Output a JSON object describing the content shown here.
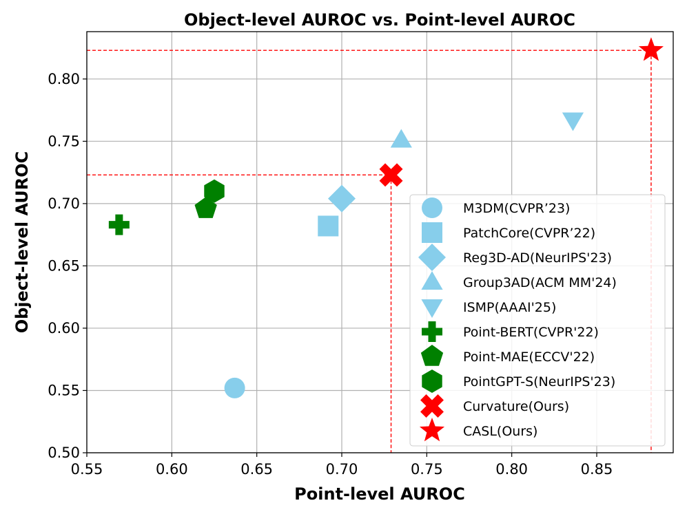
{
  "chart_data": {
    "type": "scatter",
    "title": "Object-level AUROC vs. Point-level AUROC",
    "xlabel": "Point-level AUROC",
    "ylabel": "Object-level AUROC",
    "xlim": [
      0.55,
      0.895
    ],
    "ylim": [
      0.5,
      0.838
    ],
    "xticks": [
      "0.55",
      "0.60",
      "0.65",
      "0.70",
      "0.75",
      "0.80",
      "0.85"
    ],
    "yticks": [
      "0.50",
      "0.55",
      "0.60",
      "0.65",
      "0.70",
      "0.75",
      "0.80"
    ],
    "xtick_values": [
      0.55,
      0.6,
      0.65,
      0.7,
      0.75,
      0.8,
      0.85
    ],
    "ytick_values": [
      0.5,
      0.55,
      0.6,
      0.65,
      0.7,
      0.75,
      0.8
    ],
    "grid": true,
    "legend_position": "lower-right",
    "series": [
      {
        "name": "M3DM(CVPR’23)",
        "marker": "circle",
        "color": "#87CEEB",
        "points": [
          {
            "x": 0.637,
            "y": 0.552
          }
        ]
      },
      {
        "name": "PatchCore(CVPR’22)",
        "marker": "square",
        "color": "#87CEEB",
        "points": [
          {
            "x": 0.692,
            "y": 0.682
          }
        ]
      },
      {
        "name": "Reg3D-AD(NeurIPS'23)",
        "marker": "diamond",
        "color": "#87CEEB",
        "points": [
          {
            "x": 0.7,
            "y": 0.704
          }
        ]
      },
      {
        "name": "Group3AD(ACM MM'24)",
        "marker": "triangle-up",
        "color": "#87CEEB",
        "points": [
          {
            "x": 0.735,
            "y": 0.751
          }
        ]
      },
      {
        "name": "ISMP(AAAI'25)",
        "marker": "triangle-down",
        "color": "#87CEEB",
        "points": [
          {
            "x": 0.836,
            "y": 0.767
          }
        ]
      },
      {
        "name": "Point-BERT(CVPR'22)",
        "marker": "plus",
        "color": "#008000",
        "points": [
          {
            "x": 0.569,
            "y": 0.683
          }
        ]
      },
      {
        "name": "Point-MAE(ECCV'22)",
        "marker": "pentagon",
        "color": "#008000",
        "points": [
          {
            "x": 0.62,
            "y": 0.696
          }
        ]
      },
      {
        "name": "PointGPT-S(NeurIPS'23)",
        "marker": "hexagon",
        "color": "#008000",
        "points": [
          {
            "x": 0.625,
            "y": 0.71
          }
        ]
      },
      {
        "name": "Curvature(Ours)",
        "marker": "x",
        "color": "#FF0000",
        "points": [
          {
            "x": 0.729,
            "y": 0.723
          }
        ]
      },
      {
        "name": "CASL(Ours)",
        "marker": "star",
        "color": "#FF0000",
        "points": [
          {
            "x": 0.882,
            "y": 0.823
          }
        ]
      }
    ],
    "reference_lines": [
      {
        "x": 0.729,
        "y": 0.723,
        "color": "#FF0000",
        "style": "dashed"
      },
      {
        "x": 0.882,
        "y": 0.823,
        "color": "#FF0000",
        "style": "dashed"
      }
    ]
  }
}
